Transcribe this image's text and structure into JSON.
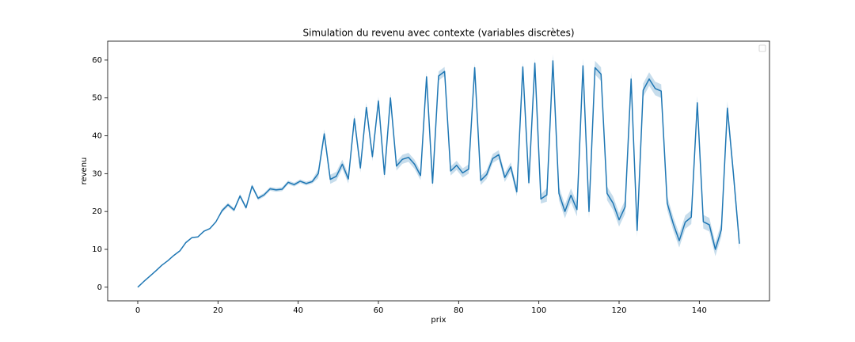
{
  "chart_data": {
    "type": "line",
    "title": "Simulation du revenu avec contexte (variables discrètes)",
    "x_label": "prix",
    "y_label": "revenu",
    "x": [
      0,
      1.5,
      3,
      4.5,
      6,
      7.5,
      9,
      10.5,
      12,
      13.5,
      15,
      16.5,
      18,
      19.5,
      21,
      22.5,
      24,
      25.5,
      27,
      28.5,
      30,
      31.5,
      33,
      34.5,
      36,
      37.5,
      39,
      40.5,
      42,
      43.5,
      45,
      46.5,
      48,
      49.5,
      51,
      52.5,
      54,
      55.5,
      57,
      58.5,
      60,
      61.5,
      63,
      64.5,
      66,
      67.5,
      69,
      70.5,
      72,
      73.5,
      75,
      76.5,
      78,
      79.5,
      81,
      82.5,
      84,
      85.5,
      87,
      88.5,
      90,
      91.5,
      93,
      94.5,
      96,
      97.5,
      99,
      100.5,
      102,
      103.5,
      105,
      106.5,
      108,
      109.5,
      111,
      112.5,
      114,
      115.5,
      117,
      118.5,
      120,
      121.5,
      123,
      124.5,
      126,
      127.5,
      129,
      130.5,
      132,
      133.5,
      135,
      136.5,
      138,
      139.5,
      141,
      142.5,
      144,
      145.5,
      147,
      148.5,
      150
    ],
    "series": [
      {
        "color": "#1f77b4",
        "values": [
          0,
          1.5,
          2.9,
          4.3,
          5.8,
          7,
          8.4,
          9.6,
          11.8,
          13.1,
          13.3,
          14.8,
          15.5,
          17.3,
          20.2,
          21.8,
          20.4,
          24.1,
          21,
          26.7,
          23.5,
          24.4,
          26,
          25.7,
          25.9,
          27.7,
          27.1,
          28,
          27.4,
          27.9,
          30,
          40.5,
          28.5,
          29.3,
          32.5,
          28.6,
          44.5,
          31.5,
          47.5,
          34.5,
          49.2,
          29.8,
          50,
          32,
          33.8,
          34.3,
          32.5,
          29.5,
          55.6,
          27.5,
          55.8,
          57,
          30.7,
          32.2,
          30.2,
          31.2,
          58,
          28.2,
          29.8,
          34,
          35,
          29,
          31.8,
          25.2,
          58.2,
          27.6,
          59.2,
          23.3,
          24.4,
          59.8,
          24.8,
          20,
          24.3,
          20.5,
          58.5,
          20,
          58,
          56.3,
          24.8,
          22.2,
          17.8,
          21.2,
          55,
          15,
          52,
          55,
          52.5,
          51.8,
          22.2,
          16.8,
          12.3,
          17.2,
          18.5,
          48.7,
          17.3,
          16.5,
          10,
          15.2,
          47.3,
          30,
          11.5
        ],
        "errors": [
          0,
          0,
          0,
          0,
          0,
          0,
          0,
          0,
          0,
          0,
          0,
          0,
          0,
          0,
          0.5,
          0.5,
          0.5,
          0.5,
          0.5,
          0.5,
          0.5,
          0.5,
          0.5,
          0.5,
          0.5,
          0.5,
          0.5,
          0.5,
          0.5,
          0.5,
          1.2,
          1.2,
          1.2,
          1.2,
          1.2,
          1.2,
          1.2,
          1.2,
          1.2,
          1.2,
          1.2,
          1.2,
          1.2,
          1.2,
          1.2,
          1.2,
          1.2,
          1.2,
          1.2,
          1.2,
          1.2,
          1.2,
          1.2,
          1.2,
          1.2,
          1.2,
          1.2,
          1.2,
          1.2,
          1.2,
          1.2,
          1.2,
          1.2,
          1.2,
          1.2,
          1.2,
          1.2,
          1.2,
          1.8,
          1.8,
          1.8,
          1.8,
          1.8,
          1.8,
          1.8,
          1.8,
          1.8,
          1.8,
          1.8,
          1.8,
          1.8,
          1.8,
          1.8,
          1.8,
          1.8,
          1.8,
          1.8,
          1.8,
          1.8,
          1.8,
          1.8,
          1.8,
          1.8,
          1.8,
          1.8,
          1.8,
          1.8,
          1.8,
          1.8,
          1.8,
          1.8
        ]
      }
    ],
    "xlim": [
      -7.5,
      157.5
    ],
    "ylim": [
      -3.6,
      65
    ],
    "xticks": [
      0,
      20,
      40,
      60,
      80,
      100,
      120,
      140
    ],
    "yticks": [
      0,
      10,
      20,
      30,
      40,
      50,
      60
    ]
  }
}
